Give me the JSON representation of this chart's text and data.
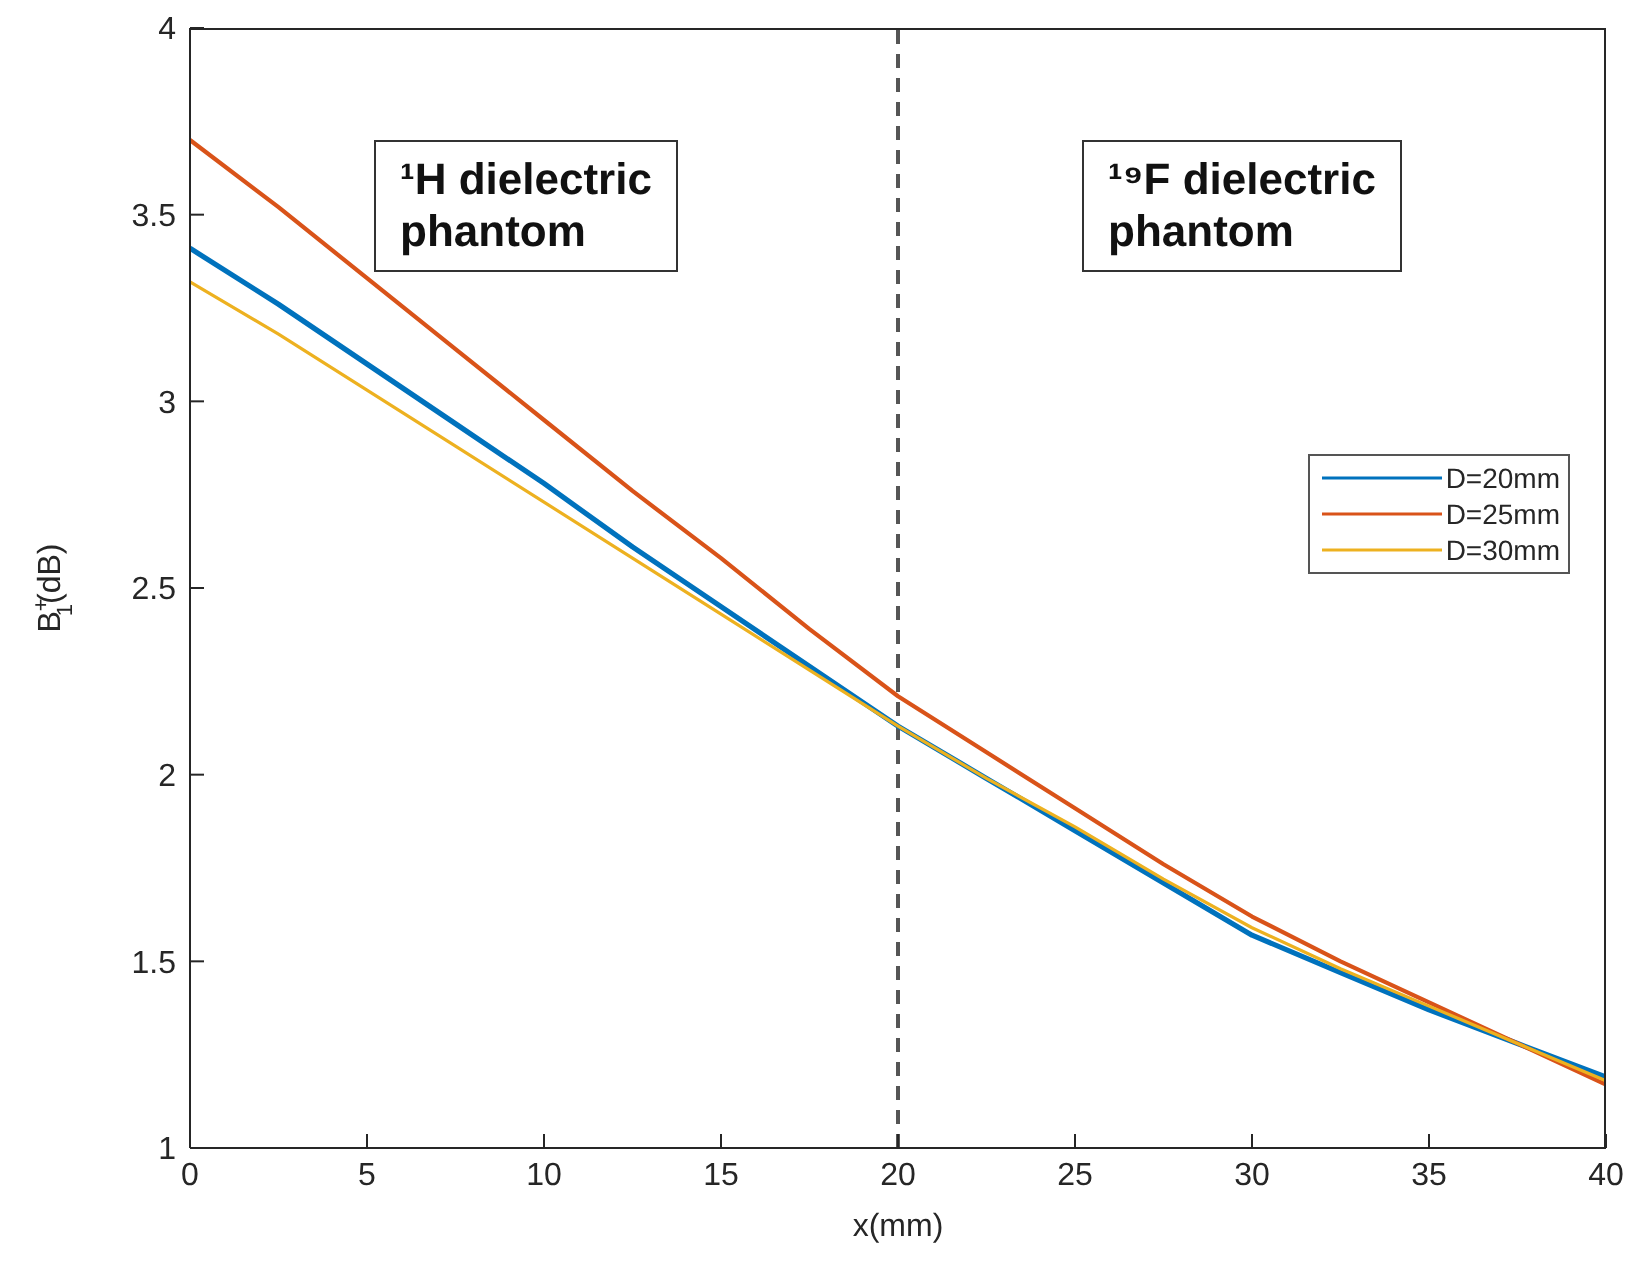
{
  "chart_data": {
    "type": "line",
    "xlabel": "x(mm)",
    "ylabel": "B$^{+}$$_{1}$(dB)",
    "x": [
      0,
      2.5,
      5,
      7.5,
      10,
      12.5,
      15,
      17.5,
      20,
      22.5,
      25,
      27.5,
      30,
      32.5,
      35,
      37.5,
      40
    ],
    "xlim": [
      0,
      40
    ],
    "xticks": [
      0,
      5,
      10,
      15,
      20,
      25,
      30,
      35,
      40
    ],
    "ylim": [
      1,
      4
    ],
    "yticks": [
      1,
      1.5,
      2,
      2.5,
      3,
      3.5,
      4
    ],
    "series": [
      {
        "name": "D=20mm",
        "color": "#0072bd",
        "values": [
          3.41,
          3.26,
          3.1,
          2.94,
          2.78,
          2.61,
          2.45,
          2.29,
          2.13,
          1.99,
          1.85,
          1.71,
          1.57,
          1.47,
          1.37,
          1.28,
          1.19
        ]
      },
      {
        "name": "D=25mm",
        "color": "#d95319",
        "values": [
          3.7,
          3.52,
          3.33,
          3.14,
          2.95,
          2.76,
          2.58,
          2.39,
          2.21,
          2.06,
          1.91,
          1.76,
          1.62,
          1.5,
          1.39,
          1.28,
          1.17
        ]
      },
      {
        "name": "D=30mm",
        "color": "#edb120",
        "values": [
          3.32,
          3.18,
          3.03,
          2.88,
          2.73,
          2.58,
          2.43,
          2.28,
          2.13,
          1.99,
          1.86,
          1.72,
          1.59,
          1.48,
          1.38,
          1.28,
          1.18
        ]
      }
    ],
    "ref_lines": [
      {
        "axis": "x",
        "value": 20,
        "color": "#555555",
        "line_style": "dashed"
      }
    ],
    "annotations": [
      "¹H dielectric phantom",
      "¹⁹F dielectric phantom"
    ],
    "legend": "right",
    "grid": false,
    "marker": "none",
    "line_style": "solid"
  }
}
